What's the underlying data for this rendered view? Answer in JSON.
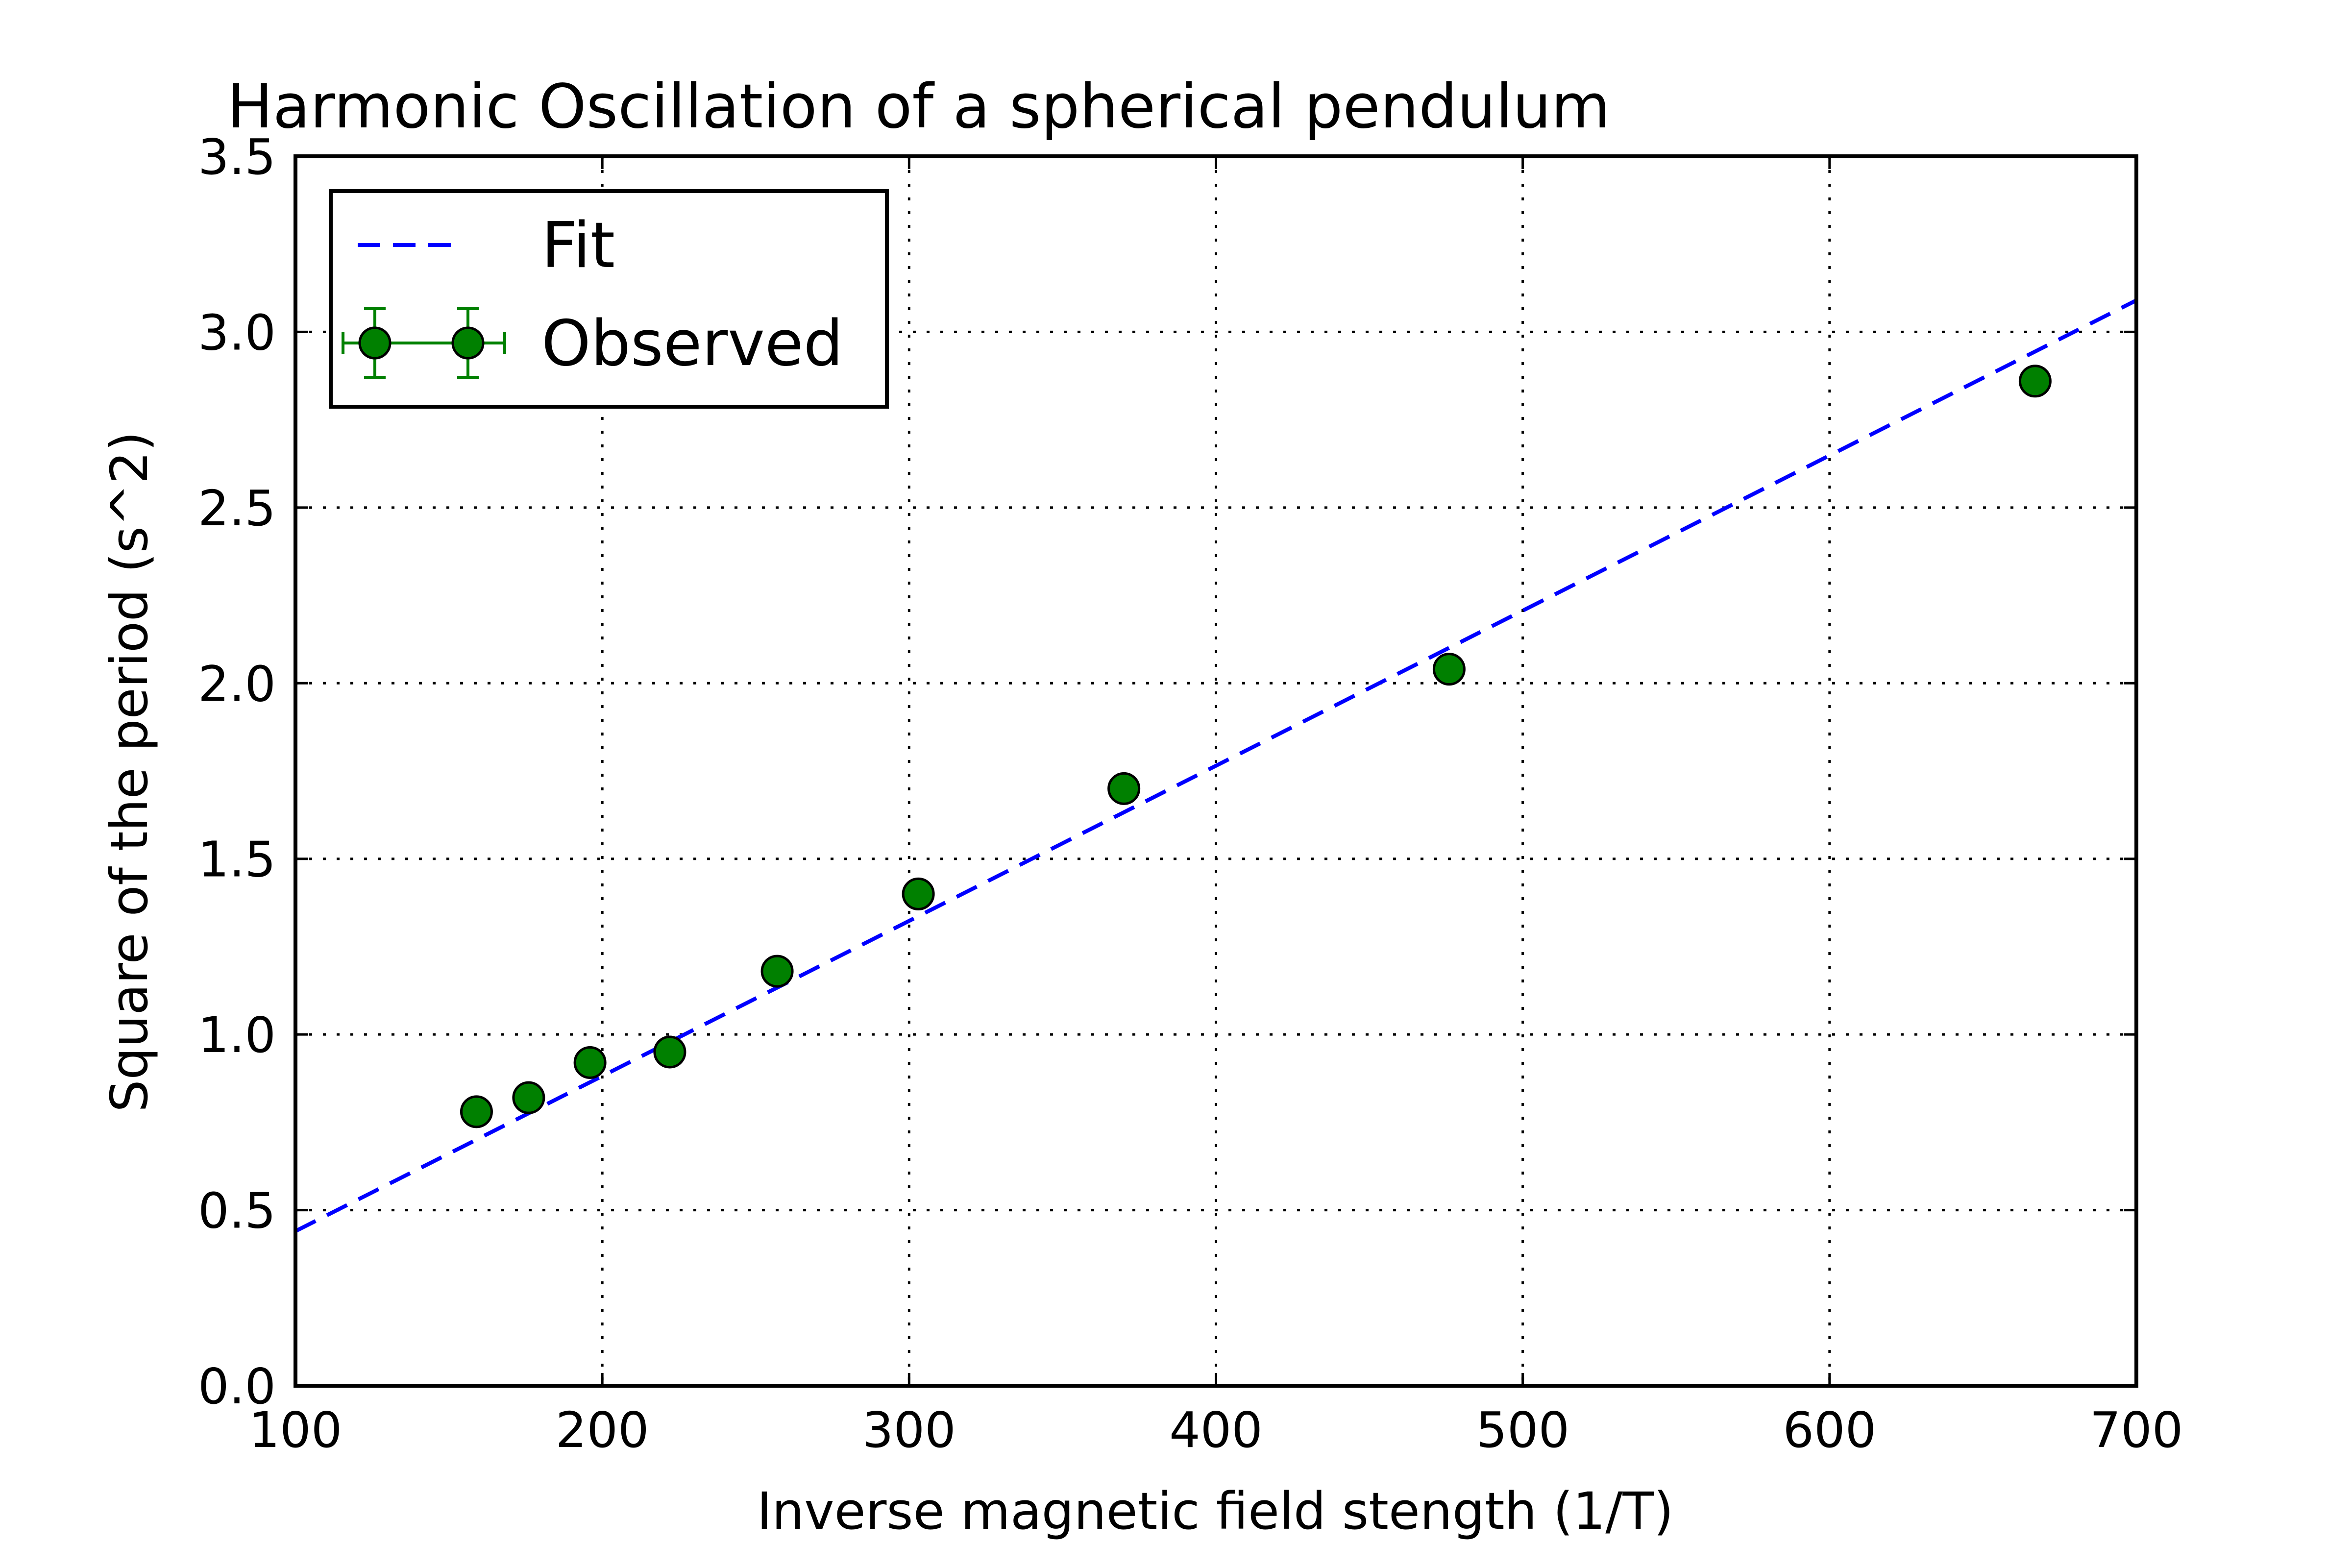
{
  "chart_data": {
    "type": "scatter",
    "title": "Harmonic Oscillation of a spherical pendulum",
    "xlabel": "Inverse magnetic field stength (1/T)",
    "ylabel": "Square of the period (s^2)",
    "xlim": [
      100,
      700
    ],
    "ylim": [
      0.0,
      3.5
    ],
    "xticks": [
      "100",
      "200",
      "300",
      "400",
      "500",
      "600",
      "700"
    ],
    "yticks": [
      "0.0",
      "0.5",
      "1.0",
      "1.5",
      "2.0",
      "2.5",
      "3.0",
      "3.5"
    ],
    "grid": true,
    "legend_position": "top-left",
    "series": [
      {
        "name": "Fit",
        "style": "dashed-line",
        "color": "#0000ff",
        "x": [
          100,
          700
        ],
        "y": [
          0.44,
          3.09
        ]
      },
      {
        "name": "Observed",
        "style": "markers-with-errorbars",
        "color": "#008000",
        "x": [
          159,
          176,
          196,
          222,
          257,
          303,
          370,
          476,
          667
        ],
        "y": [
          0.78,
          0.82,
          0.92,
          0.95,
          1.18,
          1.4,
          1.7,
          2.04,
          2.86
        ]
      }
    ]
  }
}
